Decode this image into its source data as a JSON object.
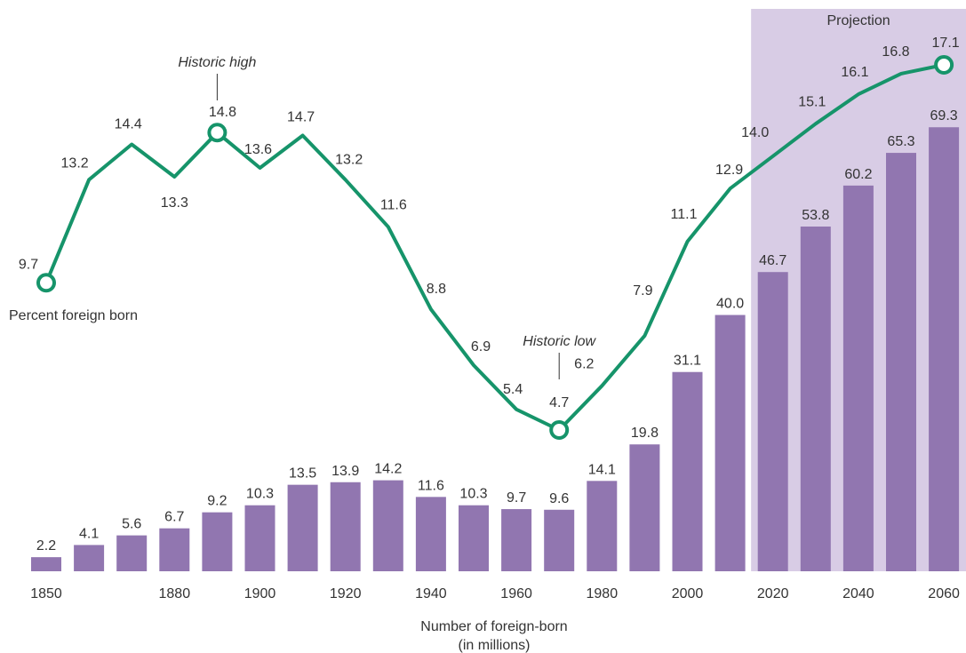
{
  "chart_data": {
    "type": "bar",
    "x": [
      1850,
      1860,
      1870,
      1880,
      1890,
      1900,
      1910,
      1920,
      1930,
      1940,
      1950,
      1960,
      1970,
      1980,
      1990,
      2000,
      2010,
      2020,
      2030,
      2040,
      2050,
      2060
    ],
    "tick_labels": [
      {
        "x": 1850,
        "label": "1850"
      },
      {
        "x": 1880,
        "label": "1880"
      },
      {
        "x": 1900,
        "label": "1900"
      },
      {
        "x": 1920,
        "label": "1920"
      },
      {
        "x": 1940,
        "label": "1940"
      },
      {
        "x": 1960,
        "label": "1960"
      },
      {
        "x": 1980,
        "label": "1980"
      },
      {
        "x": 2000,
        "label": "2000"
      },
      {
        "x": 2020,
        "label": "2020"
      },
      {
        "x": 2040,
        "label": "2040"
      },
      {
        "x": 2060,
        "label": "2060"
      }
    ],
    "series": [
      {
        "name": "Number of foreign-born (in millions)",
        "type": "bar",
        "values": [
          2.2,
          4.1,
          5.6,
          6.7,
          9.2,
          10.3,
          13.5,
          13.9,
          14.2,
          11.6,
          10.3,
          9.7,
          9.6,
          14.1,
          19.8,
          31.1,
          40.0,
          46.7,
          53.8,
          60.2,
          65.3,
          69.3
        ],
        "labels": [
          "2.2",
          "4.1",
          "5.6",
          "6.7",
          "9.2",
          "10.3",
          "13.5",
          "13.9",
          "14.2",
          "11.6",
          "10.3",
          "9.7",
          "9.6",
          "14.1",
          "19.8",
          "31.1",
          "40.0",
          "46.7",
          "53.8",
          "60.2",
          "65.3",
          "69.3"
        ]
      },
      {
        "name": "Percent foreign born",
        "type": "line",
        "values": [
          9.7,
          13.2,
          14.4,
          13.3,
          14.8,
          13.6,
          14.7,
          13.2,
          11.6,
          8.8,
          6.9,
          5.4,
          4.7,
          6.2,
          7.9,
          11.1,
          12.9,
          14.0,
          15.1,
          16.1,
          16.8,
          17.1
        ],
        "labels": [
          "9.7",
          "13.2",
          "14.4",
          "13.3",
          "14.8",
          "13.6",
          "14.7",
          "13.2",
          "11.6",
          "8.8",
          "6.9",
          "5.4",
          "4.7",
          "6.2",
          "7.9",
          "11.1",
          "12.9",
          "14.0",
          "15.1",
          "16.1",
          "16.8",
          "17.1"
        ],
        "marked_points": [
          1850,
          1890,
          1970,
          2060
        ]
      }
    ],
    "bar_ylim": [
      0,
      75
    ],
    "line_ylim": [
      3.4,
      19.0
    ],
    "projection": {
      "label": "Projection",
      "from": 2020,
      "to": 2060
    },
    "annotations": [
      {
        "text": "Historic high",
        "x": 1890
      },
      {
        "text": "Historic low",
        "x": 1970
      }
    ],
    "line_caption": "Percent foreign born",
    "bar_caption_lines": [
      "Number of foreign-born",
      "(in millions)"
    ],
    "colors": {
      "bar": "#9176b0",
      "line": "#16946a",
      "projection_band": "#d8cce5",
      "text": "#333333"
    }
  }
}
